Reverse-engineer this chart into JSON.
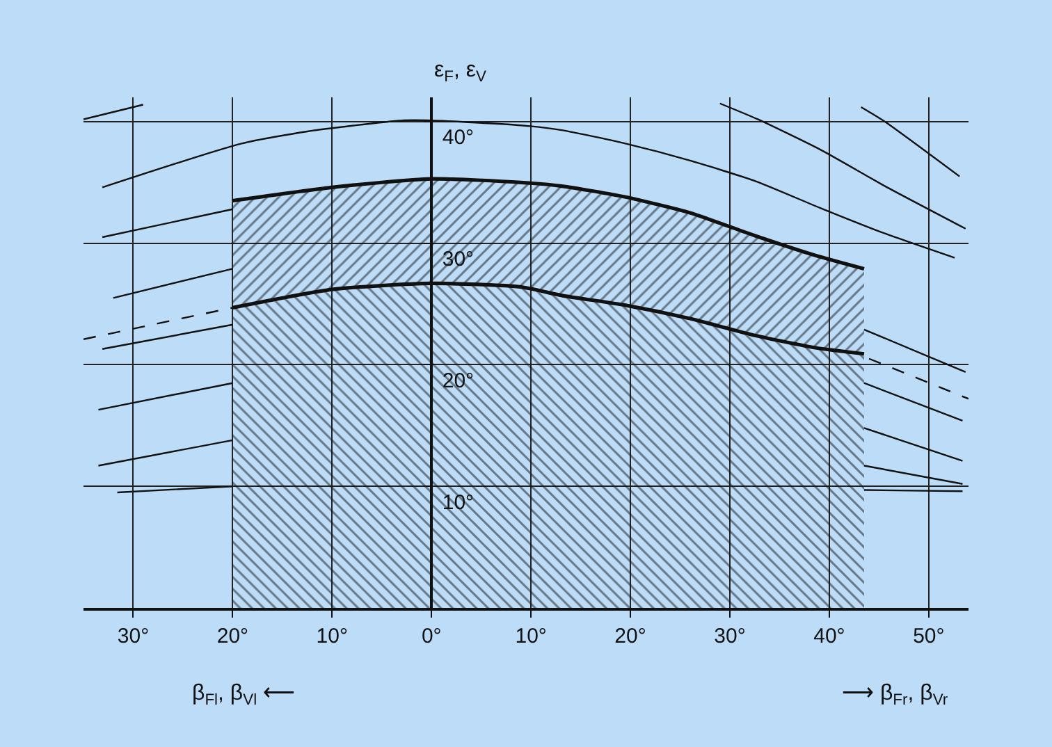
{
  "chart_data": {
    "type": "line",
    "xlabel": "β$_{Fl}$, β$_{Vl}$ ⟵",
    "ylabel": "ε$_{F}$, ε$_{V}$",
    "annotations": [
      "⟶ β$_{Fr}$, β$_{Vr}$"
    ],
    "xlim": [
      -35,
      54
    ],
    "ylim": [
      0,
      42
    ],
    "xticks": [
      {
        "value": -30,
        "label": "30°"
      },
      {
        "value": -20,
        "label": "20°"
      },
      {
        "value": -10,
        "label": "10°"
      },
      {
        "value": 0,
        "label": "0°"
      },
      {
        "value": 10,
        "label": "10°"
      },
      {
        "value": 20,
        "label": "20°"
      },
      {
        "value": 30,
        "label": "30°"
      },
      {
        "value": 40,
        "label": "40°"
      },
      {
        "value": 50,
        "label": "50°"
      }
    ],
    "yticks": [
      {
        "value": 10,
        "label": "10°"
      },
      {
        "value": 20,
        "label": "20°"
      },
      {
        "value": 30,
        "label": "30°"
      },
      {
        "value": 40,
        "label": "40°"
      }
    ],
    "grid": true,
    "legend": false,
    "marker": "none",
    "line_style": "solid",
    "series": [
      {
        "type": "area",
        "color": "#111111",
        "x": [
          -20,
          -10,
          0,
          9,
          13.1,
          19.5,
          26,
          32.6,
          38.6,
          43.5
        ],
        "values": [
          24.7,
          26.2,
          26.7,
          26.4,
          25.7,
          24.9,
          23.8,
          22.4,
          21.4,
          20.9
        ]
      },
      {
        "type": "area",
        "color": "#111111",
        "x": [
          -20,
          -10,
          0,
          9,
          13.1,
          19.5,
          26,
          32.6,
          38.6,
          43.5
        ],
        "values": [
          33.5,
          34.6,
          35.3,
          35.0,
          34.7,
          33.8,
          32.5,
          30.6,
          29.0,
          27.9
        ]
      },
      {
        "type": "line",
        "color": "#111111",
        "x": [
          -35,
          -29
        ],
        "values": [
          40.2,
          41.4
        ]
      },
      {
        "type": "line",
        "color": "#111111",
        "x": [
          -33.1,
          -19.1,
          -12.5,
          -3,
          0,
          9,
          13.1,
          19.5,
          26,
          32.6,
          39.1,
          45.6,
          52.6
        ],
        "values": [
          34.6,
          38.2,
          39.2,
          40.1,
          40.1,
          39.7,
          39.3,
          38.2,
          36.8,
          35.1,
          32.9,
          30.8,
          28.8
        ]
      },
      {
        "type": "line",
        "color": "#111111",
        "x": [
          29,
          32.8,
          39.1,
          45.6,
          53.7
        ],
        "values": [
          41.5,
          40.2,
          37.7,
          34.7,
          31.2
        ]
      },
      {
        "type": "line",
        "color": "#111111",
        "x": [
          43.2,
          45.6,
          53.1
        ],
        "values": [
          41.2,
          40.0,
          35.5
        ]
      },
      {
        "type": "line",
        "color": "#111111",
        "x": [
          -33.1,
          -20
        ],
        "values": [
          30.5,
          32.8
        ]
      },
      {
        "type": "line",
        "color": "#111111",
        "x": [
          -32,
          -20
        ],
        "values": [
          25.5,
          27.9
        ]
      },
      {
        "type": "line",
        "color": "#111111",
        "line_style": "dashed",
        "x": [
          -35,
          -20,
          10,
          44,
          54
        ],
        "values": [
          22.1,
          24.7,
          null,
          20.5,
          17.2
        ]
      },
      {
        "type": "line",
        "color": "#111111",
        "x": [
          -33.1,
          -20
        ],
        "values": [
          21.3,
          23.3
        ]
      },
      {
        "type": "line",
        "color": "#111111",
        "x": [
          -33.5,
          -20
        ],
        "values": [
          16.3,
          18.5
        ]
      },
      {
        "type": "line",
        "color": "#111111",
        "x": [
          -33.5,
          -20
        ],
        "values": [
          11.7,
          13.8
        ]
      },
      {
        "type": "line",
        "color": "#111111",
        "x": [
          -31.6,
          -20
        ],
        "values": [
          9.5,
          10.0
        ]
      },
      {
        "type": "line",
        "color": "#111111",
        "x": [
          43.5,
          53.7
        ],
        "values": [
          22.9,
          19.4
        ]
      },
      {
        "type": "line",
        "color": "#111111",
        "x": [
          43.5,
          53.4
        ],
        "values": [
          18.5,
          15.4
        ]
      },
      {
        "type": "line",
        "color": "#111111",
        "x": [
          43.5,
          53.4
        ],
        "values": [
          14.8,
          12.1
        ]
      },
      {
        "type": "line",
        "color": "#111111",
        "x": [
          43.5,
          53.4
        ],
        "values": [
          11.7,
          10.2
        ]
      },
      {
        "type": "line",
        "color": "#111111",
        "x": [
          43.5,
          53.4
        ],
        "values": [
          9.7,
          9.6
        ]
      }
    ]
  }
}
